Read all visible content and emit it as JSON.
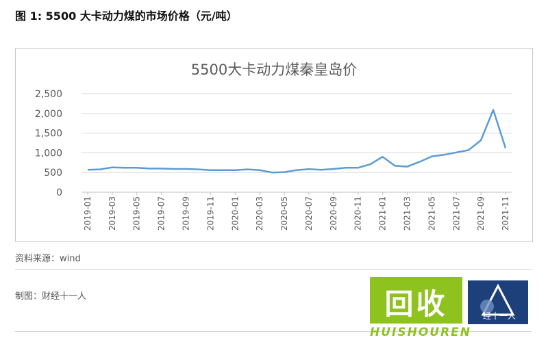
{
  "figure_title": "图 1: 5500 大卡动力煤的市场价格（元/吨）",
  "source_note": "资料来源：wind",
  "maker_note": "制图：财经十一人",
  "watermark": {
    "main_text": "回收",
    "sub_text": "HUISHOUREN",
    "color": "#8dc21f",
    "badge_text": "经十一人",
    "badge_color": "#1d3f7a"
  },
  "colors": {
    "line": "#5b9bd5",
    "grid": "#d9d9d9",
    "axis_text": "#595959"
  },
  "chart_data": {
    "type": "line",
    "title": "5500大卡动力煤秦皇岛价",
    "xlabel": "",
    "ylabel": "",
    "ylim": [
      0,
      2500
    ],
    "yticks": [
      0,
      500,
      1000,
      1500,
      2000,
      2500
    ],
    "ytick_labels": [
      "0",
      "500",
      "1,000",
      "1,500",
      "2,000",
      "2,500"
    ],
    "grid": true,
    "legend": "none",
    "x": [
      "2019-01",
      "2019-02",
      "2019-03",
      "2019-04",
      "2019-05",
      "2019-06",
      "2019-07",
      "2019-08",
      "2019-09",
      "2019-10",
      "2019-11",
      "2019-12",
      "2020-01",
      "2020-02",
      "2020-03",
      "2020-04",
      "2020-05",
      "2020-06",
      "2020-07",
      "2020-08",
      "2020-09",
      "2020-10",
      "2020-11",
      "2020-12",
      "2021-01",
      "2021-02",
      "2021-03",
      "2021-04",
      "2021-05",
      "2021-06",
      "2021-07",
      "2021-08",
      "2021-09",
      "2021-10",
      "2021-11"
    ],
    "x_tick_labels": [
      "2019-01",
      "2019-03",
      "2019-05",
      "2019-07",
      "2019-09",
      "2019-11",
      "2020-01",
      "2020-03",
      "2020-05",
      "2020-07",
      "2020-09",
      "2020-11",
      "2021-01",
      "2021-03",
      "2021-05",
      "2021-07",
      "2021-09",
      "2021-11"
    ],
    "series": [
      {
        "values": [
          570,
          580,
          630,
          620,
          620,
          600,
          600,
          590,
          590,
          580,
          560,
          560,
          560,
          580,
          560,
          500,
          510,
          560,
          585,
          570,
          590,
          620,
          620,
          710,
          900,
          670,
          650,
          770,
          910,
          950,
          1010,
          1070,
          1320,
          2090,
          1120
        ]
      }
    ]
  }
}
